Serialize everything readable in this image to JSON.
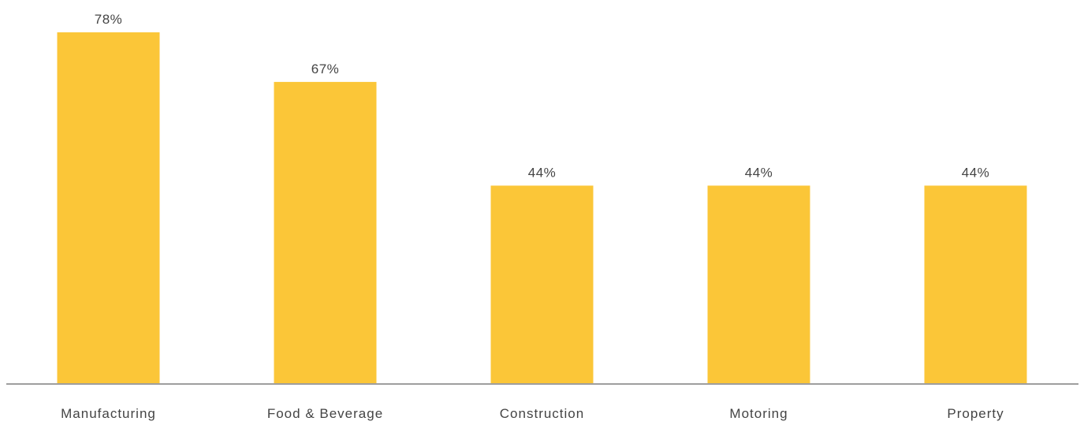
{
  "chart_data": {
    "type": "bar",
    "categories": [
      "Manufacturing",
      "Food & Beverage",
      "Construction",
      "Motoring",
      "Property"
    ],
    "values": [
      78,
      67,
      44,
      44,
      44
    ],
    "data_labels": [
      "78%",
      "67%",
      "44%",
      "44%",
      "44%"
    ],
    "title": "",
    "xlabel": "",
    "ylabel": "",
    "ylim": [
      0,
      78
    ],
    "y_axis_visible": false,
    "grid": false,
    "legend": "none",
    "colors": {
      "bar": "#FBC638",
      "axis": "#9E9E9E",
      "text": "#444444"
    }
  }
}
